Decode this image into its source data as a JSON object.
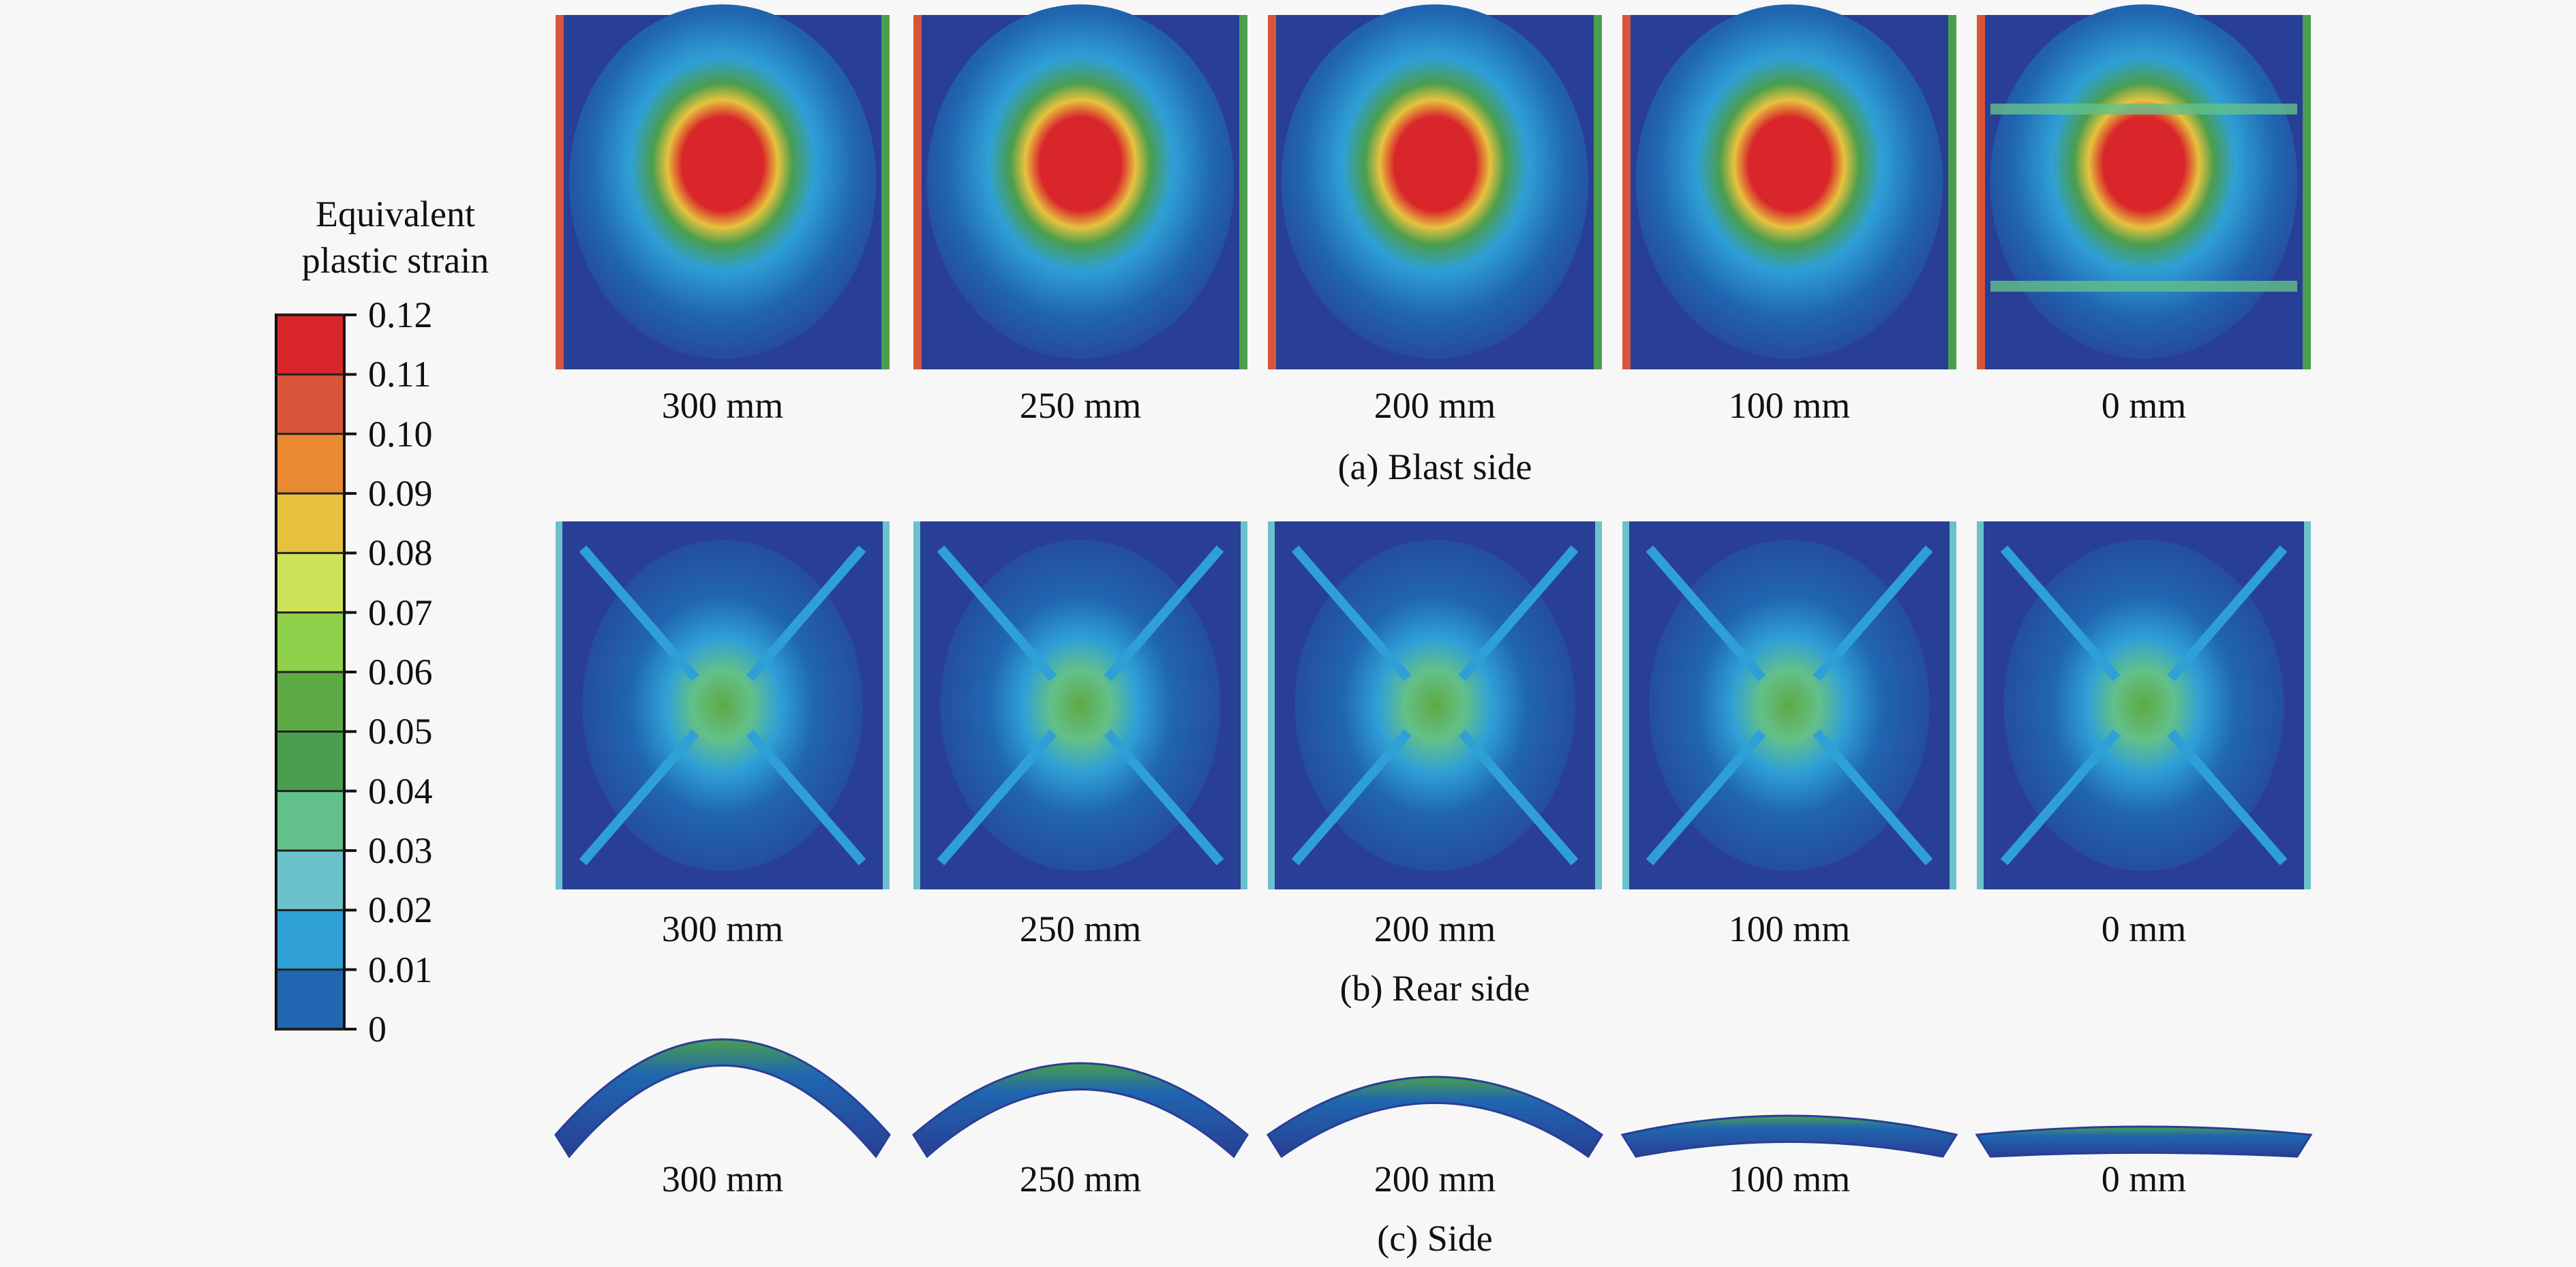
{
  "legend": {
    "title_line1": "Equivalent",
    "title_line2": "plastic strain",
    "ticks": [
      "0.12",
      "0.11",
      "0.10",
      "0.09",
      "0.08",
      "0.07",
      "0.06",
      "0.05",
      "0.04",
      "0.03",
      "0.02",
      "0.01",
      "0"
    ],
    "colors": [
      "#d9262a",
      "#d8553a",
      "#e98a32",
      "#e7c23e",
      "#cfe35a",
      "#8fd04a",
      "#5eaa44",
      "#4a9e4e",
      "#63c08a",
      "#6cc2cc",
      "#2fa0d6",
      "#2066b0",
      "#283f95"
    ]
  },
  "rows": [
    {
      "labels": [
        "300 mm",
        "250 mm",
        "200 mm",
        "100 mm",
        "0 mm"
      ],
      "section": "(a) Blast side"
    },
    {
      "labels": [
        "300 mm",
        "250 mm",
        "200 mm",
        "100 mm",
        "0 mm"
      ],
      "section": "(b) Rear side"
    },
    {
      "labels": [
        "300 mm",
        "250 mm",
        "200 mm",
        "100 mm",
        "0 mm"
      ],
      "section": "(c) Side"
    }
  ]
}
